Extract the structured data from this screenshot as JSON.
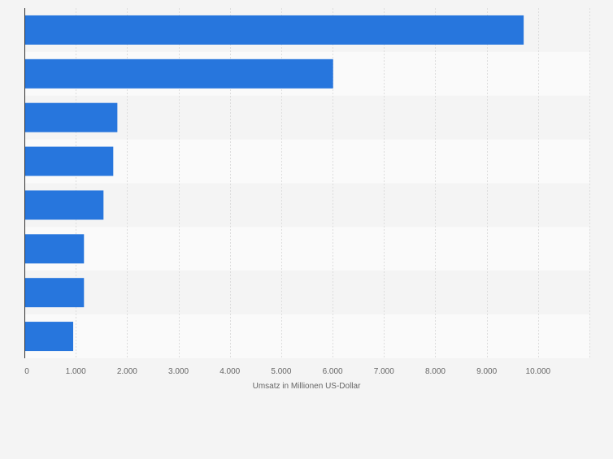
{
  "chart_data": {
    "type": "bar",
    "orientation": "horizontal",
    "categories": [
      "",
      "",
      "",
      "",
      "",
      "",
      "",
      ""
    ],
    "values": [
      9720,
      6010,
      1810,
      1730,
      1540,
      1160,
      1160,
      950
    ],
    "title": "",
    "xlabel": "Umsatz in Millionen US-Dollar",
    "ylabel": "",
    "xlim": [
      0,
      11000
    ],
    "xticks": [
      0,
      1000,
      2000,
      3000,
      4000,
      5000,
      6000,
      7000,
      8000,
      9000,
      10000
    ],
    "xtick_labels": [
      "0",
      "1.000",
      "2.000",
      "3.000",
      "4.000",
      "5.000",
      "6.000",
      "7.000",
      "8.000",
      "9.000",
      "10.000"
    ],
    "grid": true,
    "colors": {
      "bar": "#2776dd",
      "page_bg": "#f4f4f4",
      "band_light": "#fafafa",
      "band_dark": "#f4f4f4",
      "grid": "#dddddd",
      "axis": "#333333",
      "tick_text": "#666666"
    }
  }
}
